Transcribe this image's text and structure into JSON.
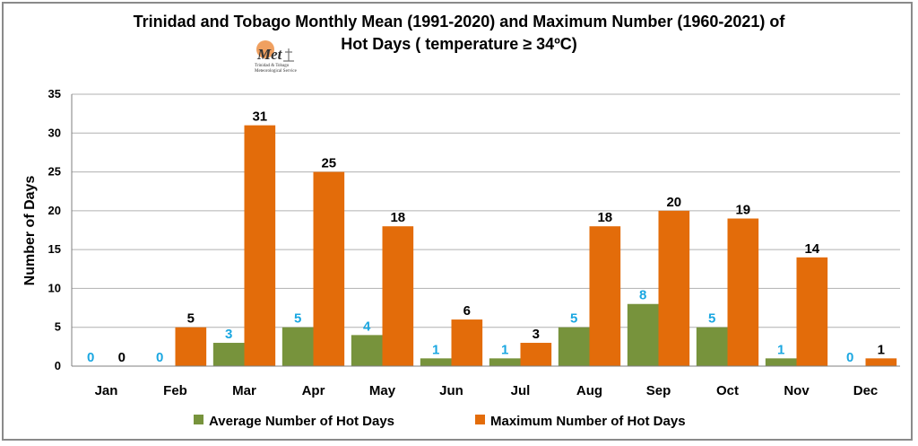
{
  "chart_data": {
    "type": "bar",
    "title_line1": "Trinidad and Tobago Monthly Mean (1991-2020)  and Maximum Number (1960-2021) of",
    "title_line2": "Hot Days ( temperature  ≥  34ºC)",
    "ylabel": "Number of Days",
    "xlabel": "",
    "ylim": [
      0,
      35
    ],
    "yticks": [
      0,
      5,
      10,
      15,
      20,
      25,
      30,
      35
    ],
    "grid": true,
    "legend_position": "bottom",
    "categories": [
      "Jan",
      "Feb",
      "Mar",
      "Apr",
      "May",
      "Jun",
      "Jul",
      "Aug",
      "Sep",
      "Oct",
      "Nov",
      "Dec"
    ],
    "series": [
      {
        "name": "Average Number of Hot Days",
        "values": [
          0,
          0,
          3,
          5,
          4,
          1,
          1,
          5,
          8,
          5,
          1,
          0
        ],
        "color": "#77933c",
        "label_color": "#1ba7e1"
      },
      {
        "name": "Maximum Number of Hot Days",
        "values": [
          0,
          5,
          31,
          25,
          18,
          6,
          3,
          18,
          20,
          19,
          14,
          1
        ],
        "color": "#e36c0a",
        "label_color": "#000000"
      }
    ]
  },
  "logo": {
    "text": "Met",
    "subtitle_line1": "Trinidad & Tobago",
    "subtitle_line2": "Meteorological Service"
  }
}
